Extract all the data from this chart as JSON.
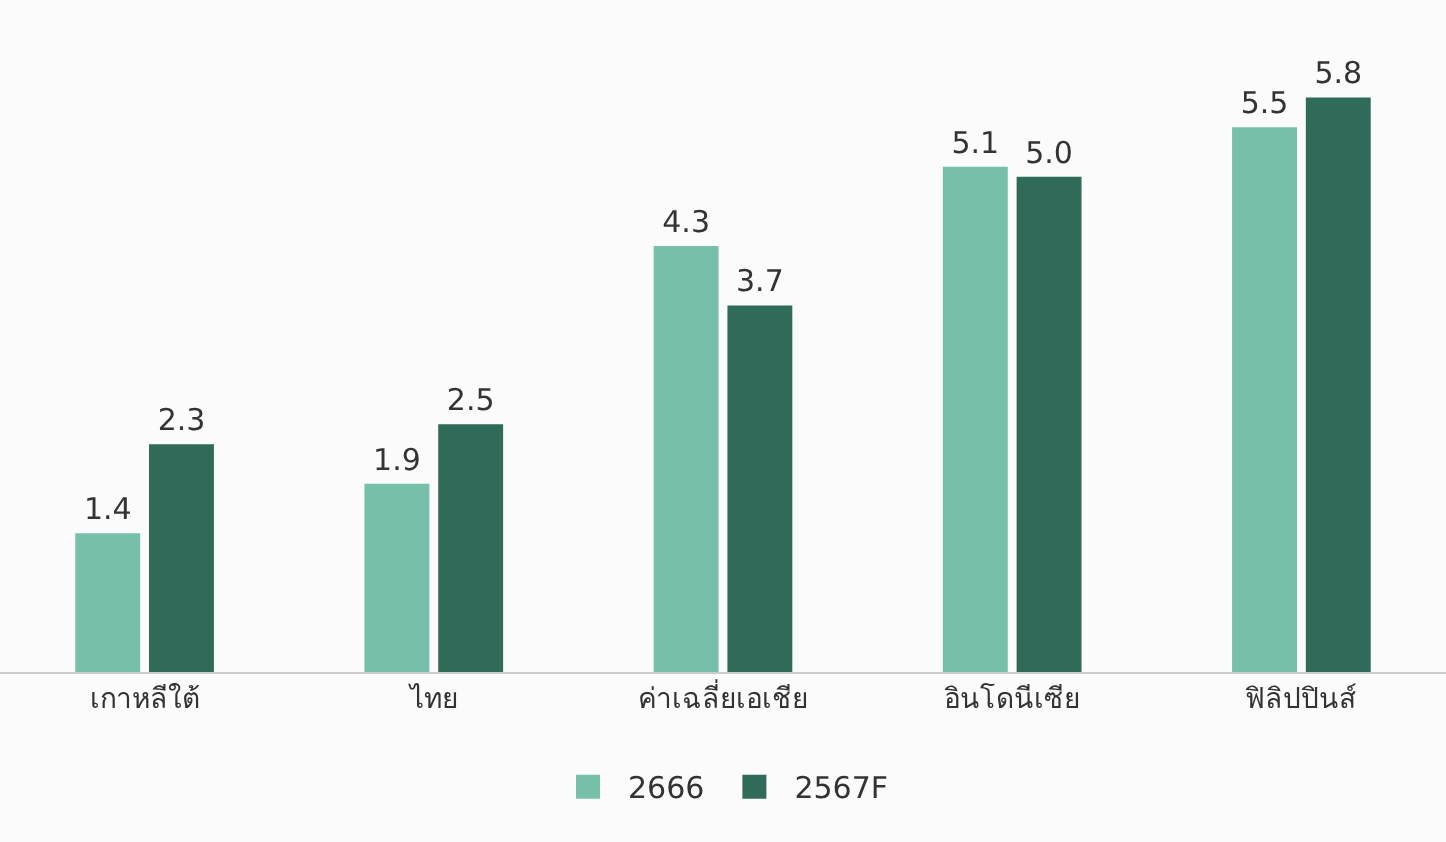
{
  "chart_data": {
    "type": "bar",
    "categories": [
      "เกาหลีใต้",
      "ไทย",
      "ค่าเฉลี่ยเอเชีย",
      "อินโดนีเซีย",
      "ฟิลิปปินส์"
    ],
    "series": [
      {
        "name": "2666",
        "color": "#76bfa8",
        "values": [
          1.4,
          1.9,
          4.3,
          5.1,
          5.5
        ],
        "value_labels": [
          "1.4",
          "1.9",
          "4.3",
          "5.1",
          "5.5"
        ]
      },
      {
        "name": "2567F",
        "color": "#2f6b58",
        "values": [
          2.3,
          2.5,
          3.7,
          5.0,
          5.8
        ],
        "value_labels": [
          "2.3",
          "2.5",
          "3.7",
          "5.0",
          "5.8"
        ]
      }
    ],
    "legend": "bottom"
  }
}
